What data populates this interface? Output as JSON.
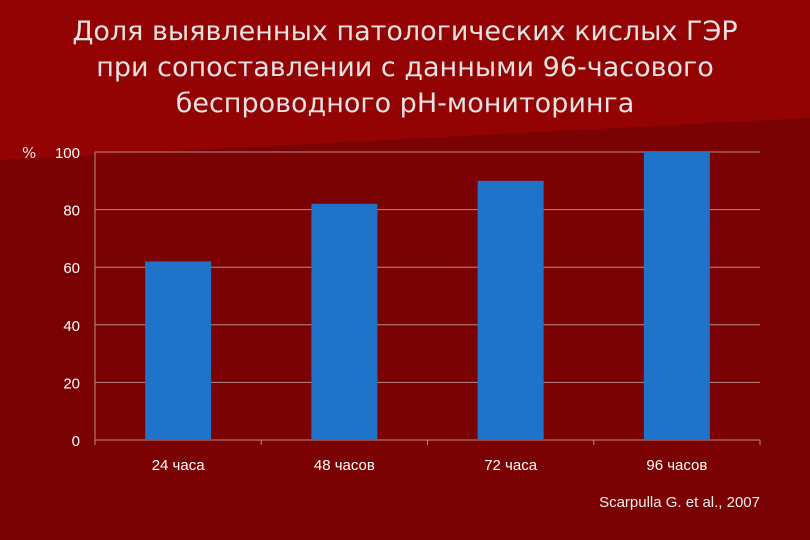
{
  "title_lines": [
    "Доля выявленных патологических кислых ГЭР",
    "при сопоставлении с данными 96-часового",
    "беспроводного рН-мониторинга"
  ],
  "unit_label": "%",
  "source": "Scarpulla G. et al., 2007",
  "colors": {
    "background": "#7a0202",
    "bar": "#1f73c9",
    "grid": "#b5898b",
    "axis_text": "#ffffff"
  },
  "chart_data": {
    "type": "bar",
    "categories": [
      "24 часа",
      "48 часов",
      "72 часа",
      "96 часов"
    ],
    "values": [
      62,
      82,
      90,
      100
    ],
    "title": "",
    "xlabel": "",
    "ylabel": "%",
    "ylim": [
      0,
      100
    ],
    "yticks": [
      0,
      20,
      40,
      60,
      80,
      100
    ],
    "grid": true
  }
}
